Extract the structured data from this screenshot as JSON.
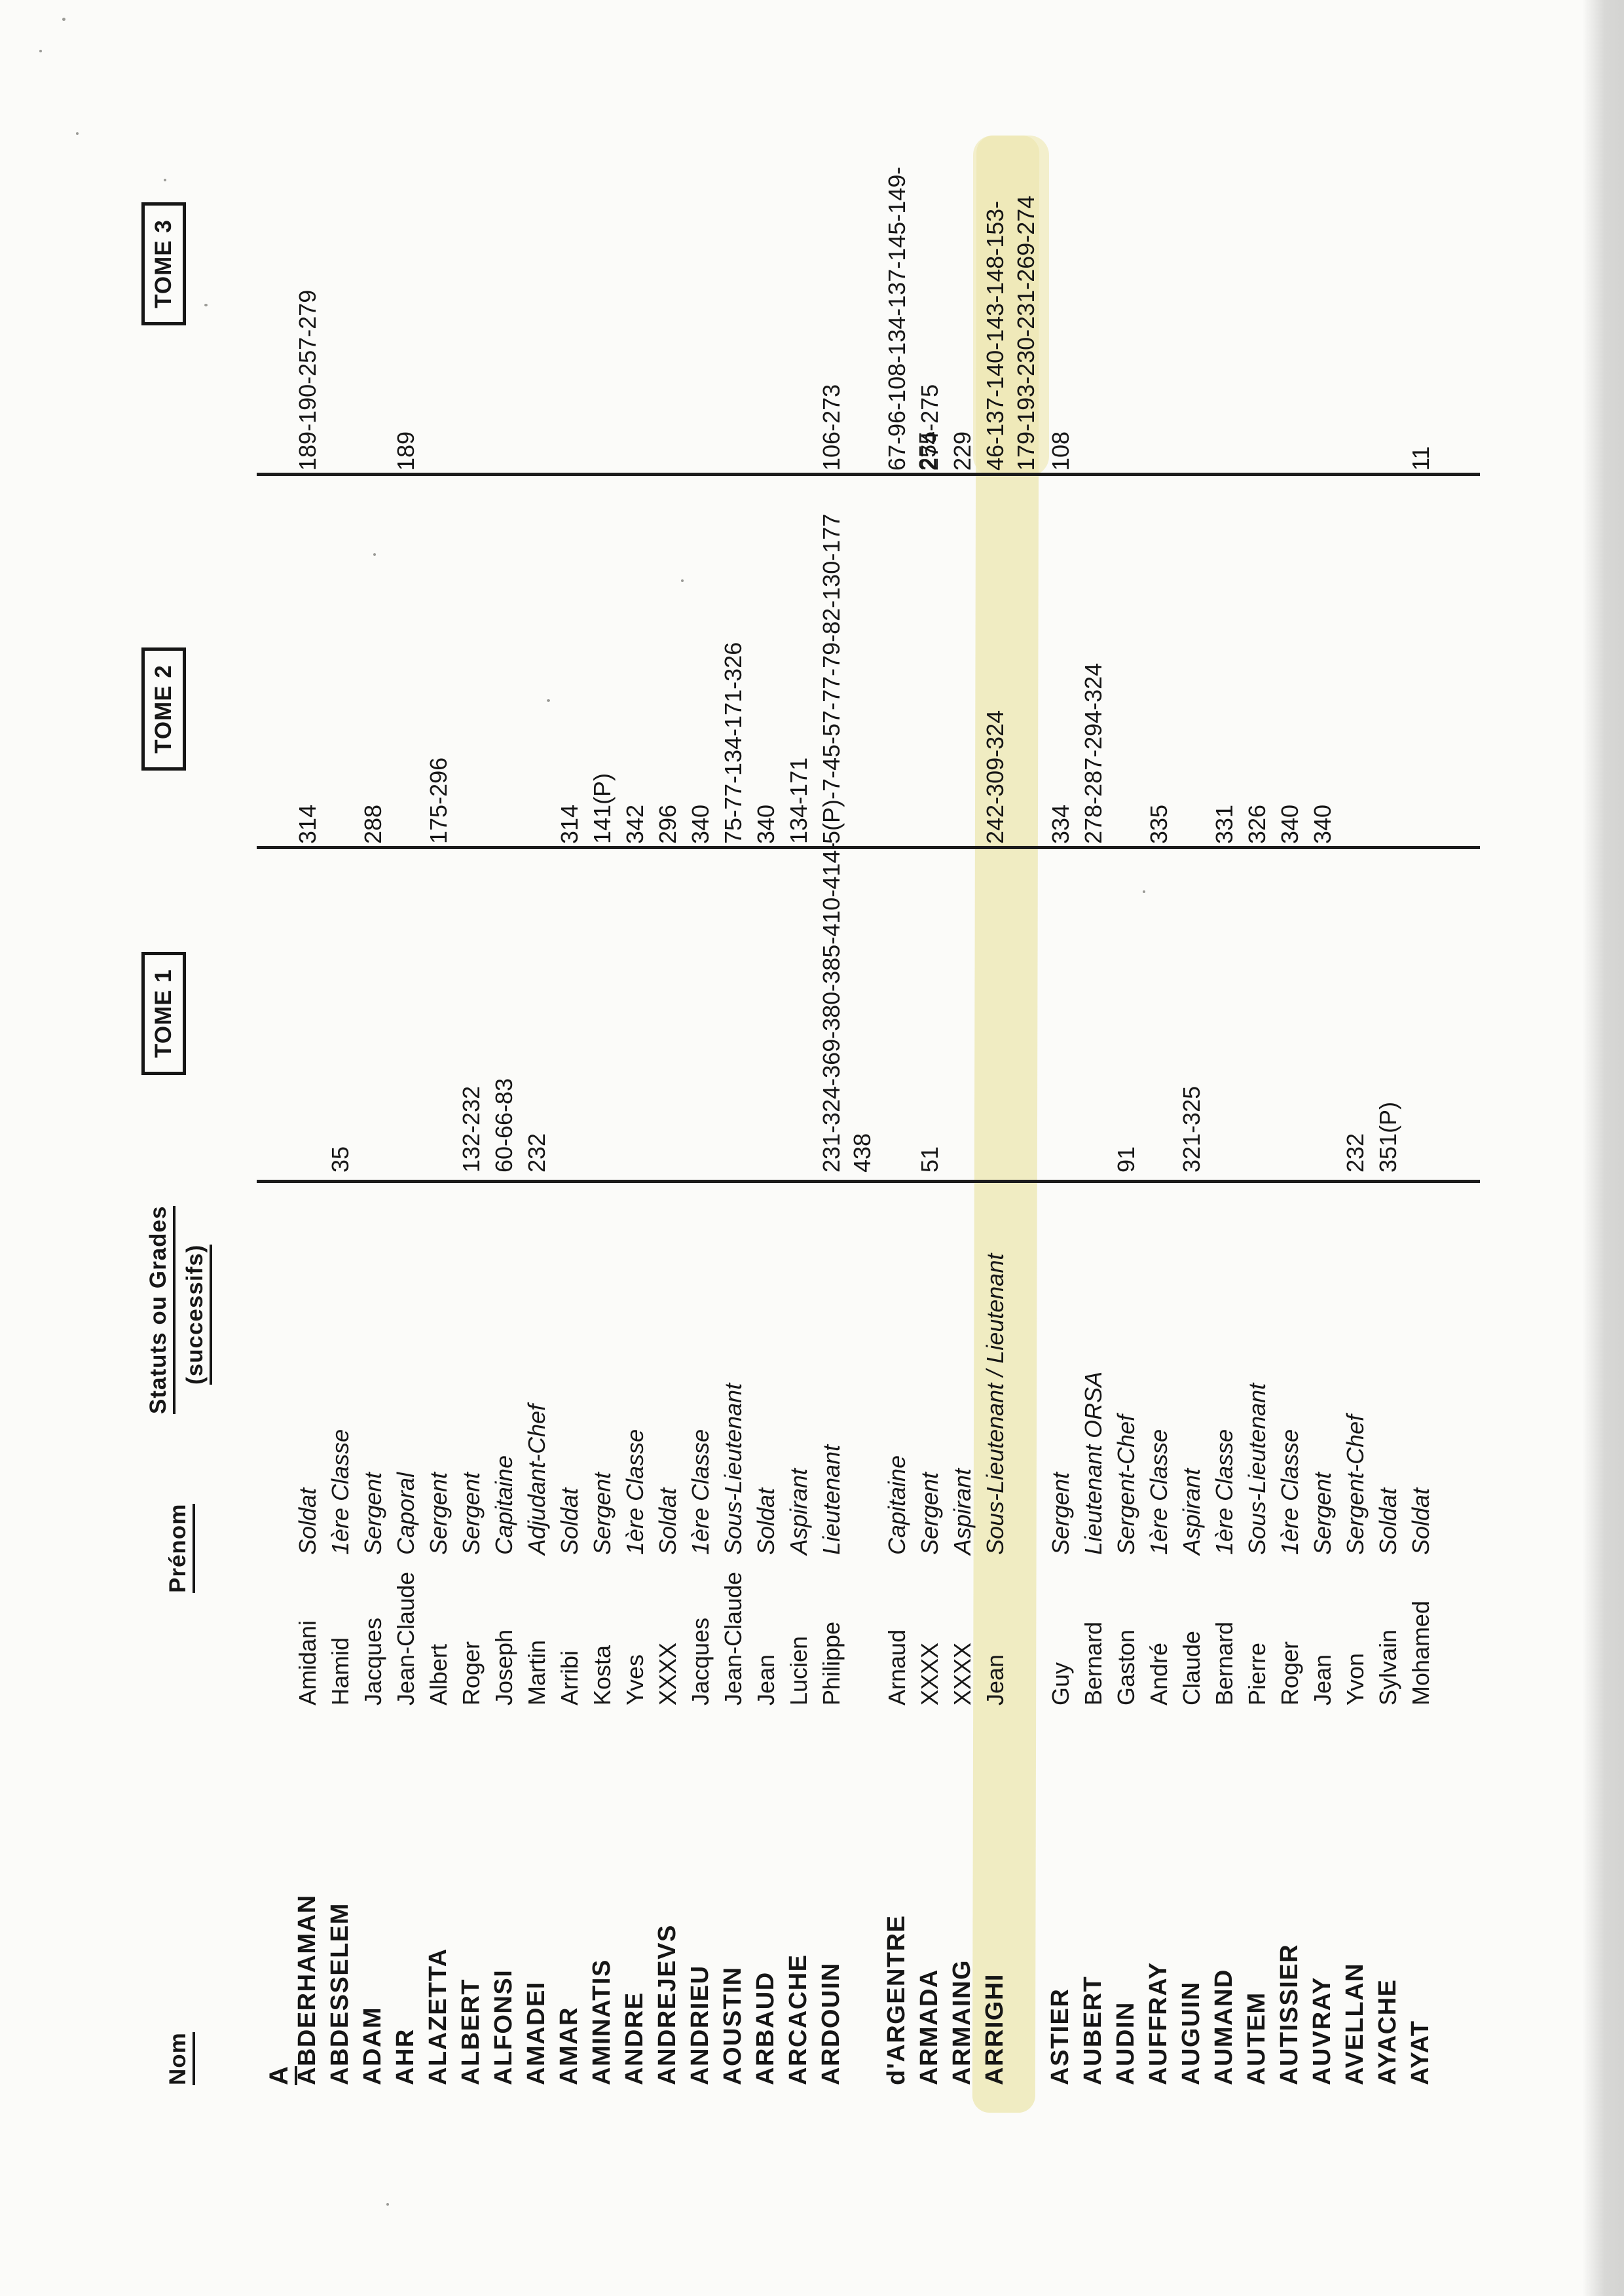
{
  "page": {
    "background_color": "#fbfbf9",
    "text_color": "#161616",
    "rule_color": "#1c1c1c",
    "highlight_color": "#eee8b4"
  },
  "headers": {
    "nom": "Nom",
    "prenom": "Prénom",
    "statuts_line1": "Statuts ou Grades",
    "statuts_line2": "(successifs)",
    "tome1": "TOME 1",
    "tome2": "TOME 2",
    "tome3": "TOME 3"
  },
  "section_letter": "A",
  "rows": [
    {
      "name": "ABDERHAMAN",
      "prenom": "Amidani",
      "grade": "Soldat",
      "tome1": "",
      "tome2": "314",
      "tome3": "189-190-257-279"
    },
    {
      "name": "ABDESSELEM",
      "prenom": "Hamid",
      "grade": "1ère Classe",
      "tome1": "35",
      "tome2": "",
      "tome3": ""
    },
    {
      "name": "ADAM",
      "prenom": "Jacques",
      "grade": "Sergent",
      "tome1": "",
      "tome2": "288",
      "tome3": ""
    },
    {
      "name": "AHR",
      "prenom": "Jean-Claude",
      "grade": "Caporal",
      "tome1": "",
      "tome2": "",
      "tome3": "189"
    },
    {
      "name": "ALAZETTA",
      "prenom": "Albert",
      "grade": "Sergent",
      "tome1": "",
      "tome2": "175-296",
      "tome3": ""
    },
    {
      "name": "ALBERT",
      "prenom": "Roger",
      "grade": "Sergent",
      "tome1": "132-232",
      "tome2": "",
      "tome3": ""
    },
    {
      "name": "ALFONSI",
      "prenom": "Joseph",
      "grade": "Capitaine",
      "tome1": "60-66-83",
      "tome2": "",
      "tome3": ""
    },
    {
      "name": "AMADEI",
      "prenom": "Martin",
      "grade": "Adjudant-Chef",
      "tome1": "232",
      "tome2": "",
      "tome3": ""
    },
    {
      "name": "AMAR",
      "prenom": "Arribi",
      "grade": "Soldat",
      "tome1": "",
      "tome2": "314",
      "tome3": ""
    },
    {
      "name": "AMINATIS",
      "prenom": "Kosta",
      "grade": "Sergent",
      "tome1": "",
      "tome2": "141(P)",
      "tome3": ""
    },
    {
      "name": "ANDRE",
      "prenom": "Yves",
      "grade": "1ère Classe",
      "tome1": "",
      "tome2": "342",
      "tome3": ""
    },
    {
      "name": "ANDREJEVS",
      "prenom": "XXXX",
      "grade": "Soldat",
      "tome1": "",
      "tome2": "296",
      "tome3": ""
    },
    {
      "name": "ANDRIEU",
      "prenom": "Jacques",
      "grade": "1ère Classe",
      "tome1": "",
      "tome2": "340",
      "tome3": ""
    },
    {
      "name": "AOUSTIN",
      "prenom": "Jean-Claude",
      "grade": "Sous-Lieutenant",
      "tome1": "",
      "tome2": "75-77-134-171-326",
      "tome3": ""
    },
    {
      "name": "ARBAUD",
      "prenom": "Jean",
      "grade": "Soldat",
      "tome1": "",
      "tome2": "340",
      "tome3": ""
    },
    {
      "name": "ARCACHE",
      "prenom": "Lucien",
      "grade": "Aspirant",
      "tome1": "",
      "tome2": "134-171",
      "tome3": ""
    },
    {
      "name": "ARDOUIN",
      "prenom": "Philippe",
      "grade": "Lieutenant",
      "tome1": "231-324-369-380-385-410-414-438",
      "tome2": "5(P)-7-45-57-77-79-82-130-177",
      "tome3": "106-273"
    },
    {
      "name": "d'ARGENTRE",
      "prenom": "Arnaud",
      "grade": "Capitaine",
      "tome1": "",
      "tome2": "",
      "tome3": "67-96-108-134-137-145-149-255",
      "gap_before": true
    },
    {
      "name": "ARMADA",
      "prenom": "XXXX",
      "grade": "Sergent",
      "tome1": "51",
      "tome2": "",
      "tome3": "274-275"
    },
    {
      "name": "ARMAING",
      "prenom": "XXXX",
      "grade": "Aspirant",
      "tome1": "",
      "tome2": "",
      "tome3": "229"
    },
    {
      "name": "ARRIGHI",
      "prenom": "Jean",
      "grade": "Sous-Lieutenant / Lieutenant",
      "tome1": "",
      "tome2": "242-309-324",
      "tome3": "46-137-140-143-148-153-179-193-230-231-269-274",
      "highlight": true
    },
    {
      "name": "ASTIER",
      "prenom": "Guy",
      "grade": "Sergent",
      "tome1": "",
      "tome2": "334",
      "tome3": "108",
      "gap_before": true
    },
    {
      "name": "AUBERT",
      "prenom": "Bernard",
      "grade": "Lieutenant ORSA",
      "tome1": "",
      "tome2": "278-287-294-324",
      "tome3": ""
    },
    {
      "name": "AUDIN",
      "prenom": "Gaston",
      "grade": "Sergent-Chef",
      "tome1": "91",
      "tome2": "",
      "tome3": ""
    },
    {
      "name": "AUFFRAY",
      "prenom": "André",
      "grade": "1ère Classe",
      "tome1": "",
      "tome2": "335",
      "tome3": ""
    },
    {
      "name": "AUGUIN",
      "prenom": "Claude",
      "grade": "Aspirant",
      "tome1": "321-325",
      "tome2": "",
      "tome3": ""
    },
    {
      "name": "AUMAND",
      "prenom": "Bernard",
      "grade": "1ère Classe",
      "tome1": "",
      "tome2": "331",
      "tome3": ""
    },
    {
      "name": "AUTEM",
      "prenom": "Pierre",
      "grade": "Sous-Lieutenant",
      "tome1": "",
      "tome2": "326",
      "tome3": ""
    },
    {
      "name": "AUTISSIER",
      "prenom": "Roger",
      "grade": "1ère Classe",
      "tome1": "",
      "tome2": "340",
      "tome3": ""
    },
    {
      "name": "AUVRAY",
      "prenom": "Jean",
      "grade": "Sergent",
      "tome1": "",
      "tome2": "340",
      "tome3": ""
    },
    {
      "name": "AVELLAN",
      "prenom": "Yvon",
      "grade": "Sergent-Chef",
      "tome1": "232",
      "tome2": "",
      "tome3": ""
    },
    {
      "name": "AYACHE",
      "prenom": "Sylvain",
      "grade": "Soldat",
      "tome1": "351(P)",
      "tome2": "",
      "tome3": ""
    },
    {
      "name": "AYAT",
      "prenom": "Mohamed",
      "grade": "Soldat",
      "tome1": "",
      "tome2": "",
      "tome3": "11"
    }
  ]
}
